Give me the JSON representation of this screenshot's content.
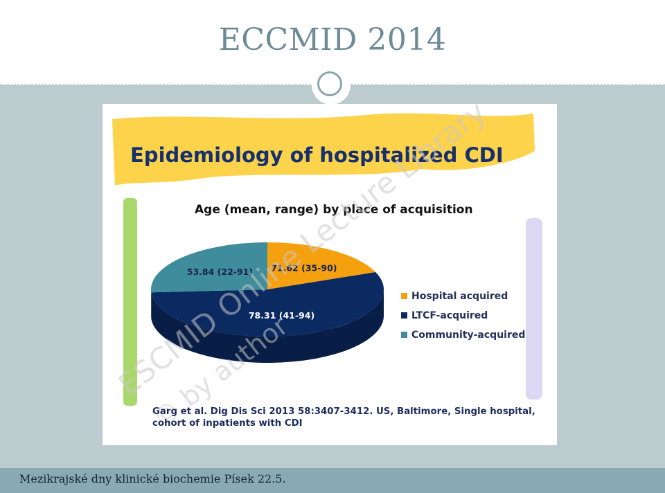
{
  "slide": {
    "title": "ECCMID 2014",
    "footer": "Mezikrajské dny klinické biochemie Písek 22.5."
  },
  "image": {
    "heading": "Epidemiology of hospitalized CDI",
    "chart_title": "Age (mean, range) by place of acquisition",
    "citation_line1": "Garg et al. Dig Dis Sci 2013 58:3407-3412. US, Baltimore, Single hospital,",
    "citation_line2": "cohort of inpatients with CDI",
    "watermark_line1": "ESCMID Online Lecture Library",
    "watermark_line2": "© by author"
  },
  "chart_data": {
    "type": "pie",
    "title": "Age (mean, range) by place of acquisition",
    "series": [
      {
        "name": "Hospital acquired",
        "label": "71.62 (35-90)",
        "share": 0.19,
        "color": "#f5a10f"
      },
      {
        "name": "LTCF-acquired",
        "label": "78.31 (41-94)",
        "share": 0.55,
        "color": "#0b2a62"
      },
      {
        "name": "Community-acquired",
        "label": "53.84 (22-91)",
        "share": 0.26,
        "color": "#3f8d9c"
      }
    ],
    "legend_position": "right"
  },
  "colors": {
    "title": "#6d8a97",
    "background": "#bccbce",
    "footer_bar": "#8aaab3",
    "banner": "#fdd34b"
  }
}
